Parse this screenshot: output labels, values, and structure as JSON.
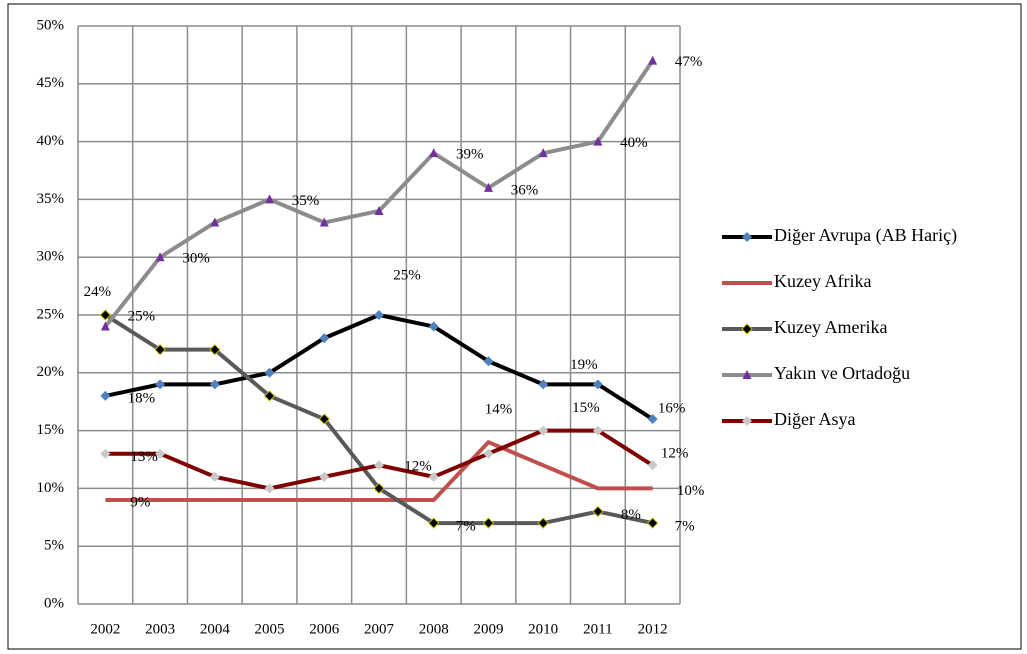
{
  "chart_data": {
    "type": "line",
    "categories": [
      "2002",
      "2003",
      "2004",
      "2005",
      "2006",
      "2007",
      "2008",
      "2009",
      "2010",
      "2011",
      "2012"
    ],
    "ylim": [
      0,
      50
    ],
    "yticks": [
      {
        "value": 0,
        "label": "0%"
      },
      {
        "value": 5,
        "label": "5%"
      },
      {
        "value": 10,
        "label": "10%"
      },
      {
        "value": 15,
        "label": "15%"
      },
      {
        "value": 20,
        "label": "20%"
      },
      {
        "value": 25,
        "label": "25%"
      },
      {
        "value": 30,
        "label": "30%"
      },
      {
        "value": 35,
        "label": "35%"
      },
      {
        "value": 40,
        "label": "40%"
      },
      {
        "value": 45,
        "label": "45%"
      },
      {
        "value": 50,
        "label": "50%"
      }
    ],
    "grid": true,
    "legend": "right",
    "series": [
      {
        "name": "Diğer Avrupa (AB Hariç)",
        "color": "#000000",
        "marker": "diamond",
        "marker_color": "#4f81bd",
        "values": [
          18,
          19,
          19,
          20,
          23,
          25,
          24,
          21,
          19,
          19,
          16
        ],
        "value_labels": [
          "18%",
          null,
          null,
          null,
          null,
          "25%",
          null,
          null,
          null,
          "19%",
          "16%"
        ]
      },
      {
        "name": "Kuzey Afrika",
        "color": "#c0504d",
        "marker": null,
        "marker_color": null,
        "values": [
          9,
          9,
          9,
          9,
          9,
          9,
          9,
          14,
          12,
          10,
          10
        ],
        "value_labels": [
          "9%",
          null,
          null,
          null,
          null,
          null,
          null,
          "14%",
          null,
          null,
          "10%"
        ]
      },
      {
        "name": "Kuzey Amerika",
        "color": "#595959",
        "marker": "diamond",
        "marker_color": "#000000",
        "values": [
          25,
          22,
          22,
          18,
          16,
          10,
          7,
          7,
          7,
          8,
          7
        ],
        "value_labels": [
          "25%",
          null,
          null,
          null,
          null,
          null,
          "7%",
          null,
          null,
          "8%",
          "7%"
        ]
      },
      {
        "name": "Yakın ve Ortadoğu",
        "color": "#8c8c8c",
        "marker": "triangle",
        "marker_color": "#7030a0",
        "values": [
          24,
          30,
          33,
          35,
          33,
          34,
          39,
          36,
          39,
          40,
          47
        ],
        "value_labels": [
          "24%",
          "30%",
          null,
          "35%",
          null,
          null,
          "39%",
          "36%",
          null,
          "40%",
          "47%"
        ]
      },
      {
        "name": "Diğer Asya",
        "color": "#7f0000",
        "marker": "diamond",
        "marker_color": "#c8c8c8",
        "values": [
          13,
          13,
          11,
          10,
          11,
          12,
          11,
          13,
          15,
          15,
          12
        ],
        "value_labels": [
          null,
          "13%",
          null,
          null,
          null,
          "12%",
          null,
          null,
          null,
          "15%",
          "12%"
        ]
      }
    ]
  }
}
